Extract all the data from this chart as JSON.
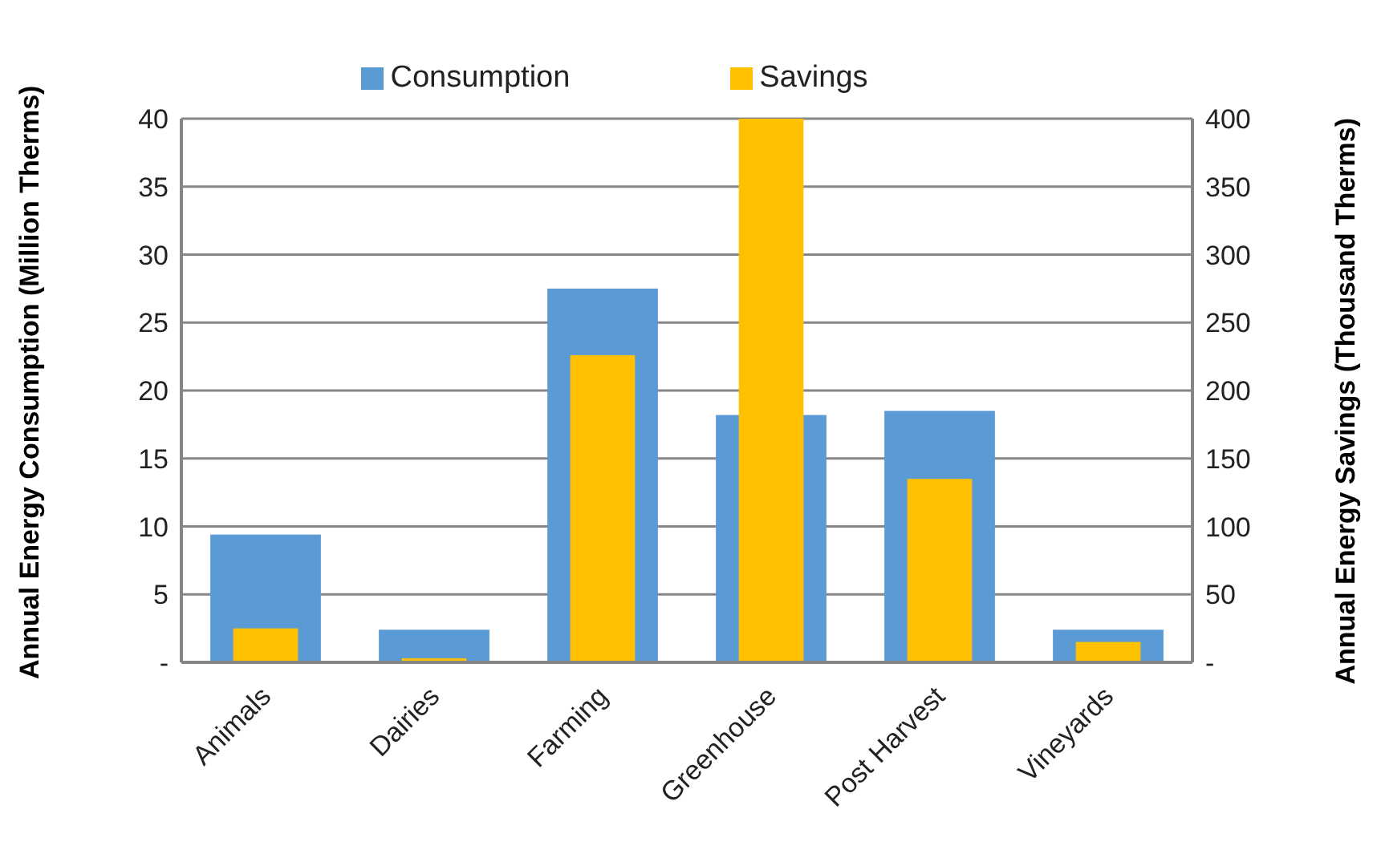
{
  "chart_data": {
    "type": "bar",
    "categories": [
      "Animals",
      "Dairies",
      "Farming",
      "Greenhouse",
      "Post Harvest",
      "Vineyards"
    ],
    "ylabel": "Annual Energy Consumption (Million Therms)",
    "y2label": "Annual Energy Savings (Thousand Therms)",
    "series": [
      {
        "name": "Consumption",
        "color": "#5b9bd5",
        "values": [
          9.4,
          2.4,
          27.5,
          18.2,
          18.5,
          2.4
        ]
      },
      {
        "name": "Savings",
        "color": "#ffc000",
        "axis": "y2",
        "values": [
          25,
          3,
          226,
          400,
          135,
          15
        ]
      }
    ],
    "ylim": [
      0,
      40
    ],
    "yticks": [
      {
        "value": 0,
        "label": "-"
      },
      5,
      10,
      15,
      20,
      25,
      30,
      35,
      40
    ],
    "y2lim": [
      0,
      400
    ],
    "y2ticks": [
      {
        "value": 0,
        "label": "-"
      },
      50,
      100,
      150,
      200,
      250,
      300,
      350,
      400
    ],
    "grid": "y",
    "legend": "top"
  }
}
